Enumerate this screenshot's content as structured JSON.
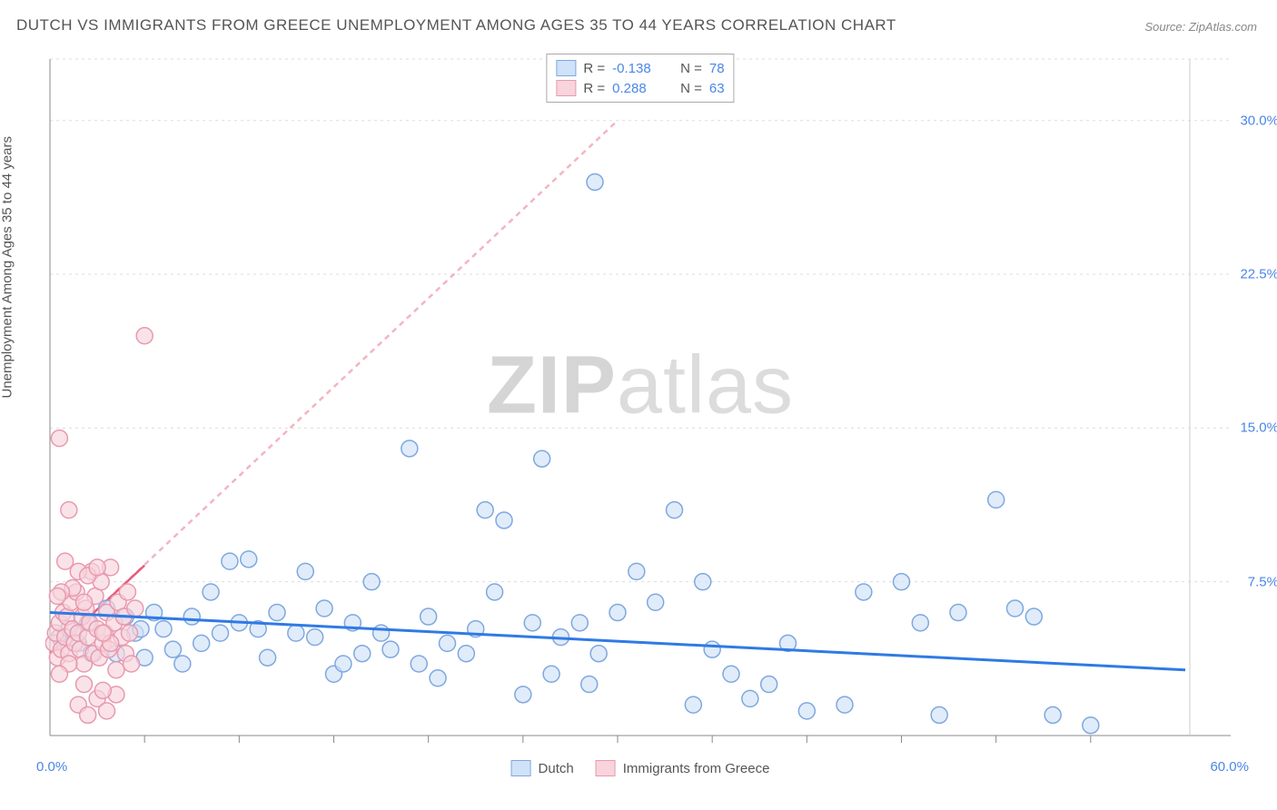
{
  "title": "DUTCH VS IMMIGRANTS FROM GREECE UNEMPLOYMENT AMONG AGES 35 TO 44 YEARS CORRELATION CHART",
  "source": "Source: ZipAtlas.com",
  "y_axis_label": "Unemployment Among Ages 35 to 44 years",
  "watermark_bold": "ZIP",
  "watermark_light": "atlas",
  "chart": {
    "type": "scatter",
    "xlim": [
      0,
      60
    ],
    "ylim": [
      0,
      33
    ],
    "x_tick_labels": {
      "min": "0.0%",
      "max": "60.0%"
    },
    "y_tick_labels": [
      "7.5%",
      "15.0%",
      "22.5%",
      "30.0%"
    ],
    "y_tick_values": [
      7.5,
      15.0,
      22.5,
      30.0
    ],
    "x_minor_ticks": [
      5,
      10,
      15,
      20,
      25,
      30,
      35,
      40,
      45,
      50,
      55
    ],
    "grid_color": "#dddddd",
    "axis_color": "#888888",
    "background_color": "#ffffff",
    "marker_radius": 9,
    "marker_stroke_width": 1.5,
    "series": [
      {
        "name": "Dutch",
        "fill": "#cfe2f8",
        "stroke": "#7fa8df",
        "fill_opacity": 0.65,
        "trend_color": "#2f7ae5",
        "trend_width": 3,
        "trend_dash": "none",
        "trend_start": [
          0,
          6.0
        ],
        "trend_end": [
          60,
          3.2
        ],
        "points": [
          [
            0.5,
            4.8
          ],
          [
            1,
            5.2
          ],
          [
            1.5,
            4.5
          ],
          [
            2,
            5.5
          ],
          [
            2.2,
            4.0
          ],
          [
            3,
            6.2
          ],
          [
            3.5,
            4.0
          ],
          [
            4,
            5.8
          ],
          [
            4.5,
            5.0
          ],
          [
            4.8,
            5.2
          ],
          [
            5,
            3.8
          ],
          [
            5.5,
            6.0
          ],
          [
            6,
            5.2
          ],
          [
            6.5,
            4.2
          ],
          [
            7,
            3.5
          ],
          [
            7.5,
            5.8
          ],
          [
            8,
            4.5
          ],
          [
            8.5,
            7.0
          ],
          [
            9,
            5.0
          ],
          [
            9.5,
            8.5
          ],
          [
            10,
            5.5
          ],
          [
            10.5,
            8.6
          ],
          [
            11,
            5.2
          ],
          [
            11.5,
            3.8
          ],
          [
            12,
            6.0
          ],
          [
            13,
            5.0
          ],
          [
            13.5,
            8.0
          ],
          [
            14,
            4.8
          ],
          [
            14.5,
            6.2
          ],
          [
            15,
            3.0
          ],
          [
            15.5,
            3.5
          ],
          [
            16,
            5.5
          ],
          [
            16.5,
            4.0
          ],
          [
            17,
            7.5
          ],
          [
            17.5,
            5.0
          ],
          [
            18,
            4.2
          ],
          [
            19,
            14.0
          ],
          [
            19.5,
            3.5
          ],
          [
            20,
            5.8
          ],
          [
            20.5,
            2.8
          ],
          [
            21,
            4.5
          ],
          [
            22,
            4.0
          ],
          [
            22.5,
            5.2
          ],
          [
            23,
            11.0
          ],
          [
            23.5,
            7.0
          ],
          [
            24,
            10.5
          ],
          [
            25,
            2.0
          ],
          [
            25.5,
            5.5
          ],
          [
            26,
            13.5
          ],
          [
            26.5,
            3.0
          ],
          [
            27,
            4.8
          ],
          [
            28,
            5.5
          ],
          [
            28.5,
            2.5
          ],
          [
            28.8,
            27.0
          ],
          [
            29,
            4.0
          ],
          [
            30,
            6.0
          ],
          [
            31,
            8.0
          ],
          [
            32,
            6.5
          ],
          [
            33,
            11.0
          ],
          [
            34,
            1.5
          ],
          [
            34.5,
            7.5
          ],
          [
            35,
            4.2
          ],
          [
            36,
            3.0
          ],
          [
            37,
            1.8
          ],
          [
            38,
            2.5
          ],
          [
            39,
            4.5
          ],
          [
            40,
            1.2
          ],
          [
            42,
            1.5
          ],
          [
            43,
            7.0
          ],
          [
            45,
            7.5
          ],
          [
            46,
            5.5
          ],
          [
            47,
            1.0
          ],
          [
            48,
            6.0
          ],
          [
            50,
            11.5
          ],
          [
            51,
            6.2
          ],
          [
            52,
            5.8
          ],
          [
            53,
            1.0
          ],
          [
            55,
            0.5
          ]
        ]
      },
      {
        "name": "Immigrants from Greece",
        "fill": "#f8d4dc",
        "stroke": "#e89aae",
        "fill_opacity": 0.65,
        "trend_color": "#e85a7a",
        "trend_width": 2.5,
        "trend_dash": "6,5",
        "trend_start": [
          0,
          4.0
        ],
        "trend_end": [
          30,
          30
        ],
        "trend_solid_end": [
          5,
          8.3
        ],
        "points": [
          [
            0.2,
            4.5
          ],
          [
            0.3,
            5.0
          ],
          [
            0.4,
            3.8
          ],
          [
            0.5,
            5.5
          ],
          [
            0.6,
            4.2
          ],
          [
            0.7,
            6.0
          ],
          [
            0.8,
            4.8
          ],
          [
            0.9,
            5.8
          ],
          [
            1.0,
            4.0
          ],
          [
            1.1,
            6.5
          ],
          [
            1.2,
            5.2
          ],
          [
            1.3,
            4.5
          ],
          [
            1.4,
            7.0
          ],
          [
            1.5,
            5.0
          ],
          [
            1.6,
            4.2
          ],
          [
            1.7,
            5.8
          ],
          [
            1.8,
            3.5
          ],
          [
            1.9,
            6.2
          ],
          [
            2.0,
            4.8
          ],
          [
            2.1,
            5.5
          ],
          [
            2.2,
            8.0
          ],
          [
            2.3,
            4.0
          ],
          [
            2.4,
            6.8
          ],
          [
            2.5,
            5.2
          ],
          [
            2.6,
            3.8
          ],
          [
            2.7,
            7.5
          ],
          [
            2.8,
            4.5
          ],
          [
            2.9,
            5.0
          ],
          [
            3.0,
            6.0
          ],
          [
            3.1,
            4.2
          ],
          [
            3.2,
            8.2
          ],
          [
            0.5,
            14.5
          ],
          [
            3.4,
            5.5
          ],
          [
            3.5,
            3.2
          ],
          [
            3.6,
            6.5
          ],
          [
            1.0,
            11.0
          ],
          [
            3.8,
            4.8
          ],
          [
            3.9,
            5.8
          ],
          [
            4.0,
            4.0
          ],
          [
            4.1,
            7.0
          ],
          [
            4.2,
            5.0
          ],
          [
            4.3,
            3.5
          ],
          [
            4.5,
            6.2
          ],
          [
            1.5,
            1.5
          ],
          [
            2.0,
            1.0
          ],
          [
            2.5,
            1.8
          ],
          [
            3.0,
            1.2
          ],
          [
            3.5,
            2.0
          ],
          [
            1.8,
            2.5
          ],
          [
            2.8,
            2.2
          ],
          [
            5.0,
            19.5
          ],
          [
            0.8,
            8.5
          ],
          [
            1.5,
            8.0
          ],
          [
            2.0,
            7.8
          ],
          [
            1.2,
            7.2
          ],
          [
            0.6,
            7.0
          ],
          [
            2.5,
            8.2
          ],
          [
            0.4,
            6.8
          ],
          [
            1.8,
            6.5
          ],
          [
            3.2,
            4.5
          ],
          [
            2.8,
            5.0
          ],
          [
            1.0,
            3.5
          ],
          [
            0.5,
            3.0
          ]
        ]
      }
    ]
  },
  "legend_top": {
    "rows": [
      {
        "swatch_fill": "#cfe2f8",
        "swatch_stroke": "#7fa8df",
        "r_label": "R = ",
        "r_value": "-0.138",
        "n_label": "N = ",
        "n_value": "78"
      },
      {
        "swatch_fill": "#f8d4dc",
        "swatch_stroke": "#e89aae",
        "r_label": "R = ",
        "r_value": "0.288",
        "n_label": "N = ",
        "n_value": "63"
      }
    ],
    "label_color": "#555555",
    "value_color": "#4a86e8"
  },
  "legend_bottom": {
    "items": [
      {
        "swatch_fill": "#cfe2f8",
        "swatch_stroke": "#7fa8df",
        "label": "Dutch"
      },
      {
        "swatch_fill": "#f8d4dc",
        "swatch_stroke": "#e89aae",
        "label": "Immigrants from Greece"
      }
    ]
  }
}
